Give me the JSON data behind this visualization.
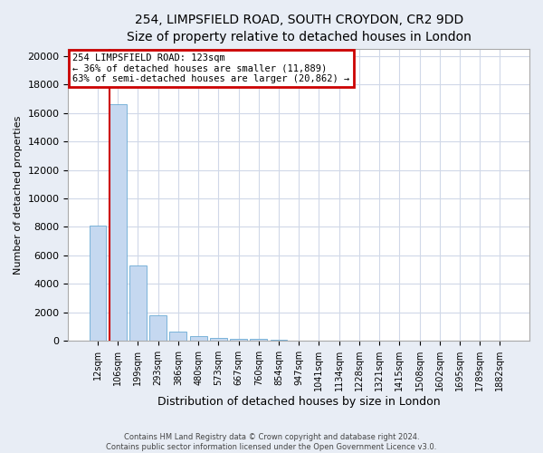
{
  "title1": "254, LIMPSFIELD ROAD, SOUTH CROYDON, CR2 9DD",
  "title2": "Size of property relative to detached houses in London",
  "xlabel": "Distribution of detached houses by size in London",
  "ylabel": "Number of detached properties",
  "categories": [
    "12sqm",
    "106sqm",
    "199sqm",
    "293sqm",
    "386sqm",
    "480sqm",
    "573sqm",
    "667sqm",
    "760sqm",
    "854sqm",
    "947sqm",
    "1041sqm",
    "1134sqm",
    "1228sqm",
    "1321sqm",
    "1415sqm",
    "1508sqm",
    "1602sqm",
    "1695sqm",
    "1789sqm",
    "1882sqm"
  ],
  "values": [
    8100,
    16600,
    5300,
    1800,
    650,
    320,
    195,
    155,
    120,
    100,
    0,
    0,
    0,
    0,
    0,
    0,
    0,
    0,
    0,
    0,
    0
  ],
  "bar_color": "#c5d8f0",
  "bar_edgecolor": "#6aaad4",
  "property_line_color": "#cc0000",
  "property_line_xindex": 1,
  "annotation_text": "254 LIMPSFIELD ROAD: 123sqm\n← 36% of detached houses are smaller (11,889)\n63% of semi-detached houses are larger (20,862) →",
  "annotation_box_facecolor": "#ffffff",
  "annotation_box_edgecolor": "#cc0000",
  "ylim": [
    0,
    20500
  ],
  "yticks": [
    0,
    2000,
    4000,
    6000,
    8000,
    10000,
    12000,
    14000,
    16000,
    18000,
    20000
  ],
  "ytick_labels": [
    "0",
    "2000",
    "4000",
    "6000",
    "8000",
    "10000",
    "12000",
    "14000",
    "16000",
    "18000",
    "20000"
  ],
  "footer1": "Contains HM Land Registry data © Crown copyright and database right 2024.",
  "footer2": "Contains public sector information licensed under the Open Government Licence v3.0.",
  "fig_facecolor": "#e8edf5",
  "plot_facecolor": "#ffffff",
  "grid_color": "#d0d8e8",
  "title1_fontsize": 10,
  "title2_fontsize": 9,
  "ylabel_fontsize": 8,
  "xlabel_fontsize": 9,
  "tick_fontsize": 8,
  "xtick_fontsize": 7,
  "annot_fontsize": 7.5,
  "footer_fontsize": 6
}
